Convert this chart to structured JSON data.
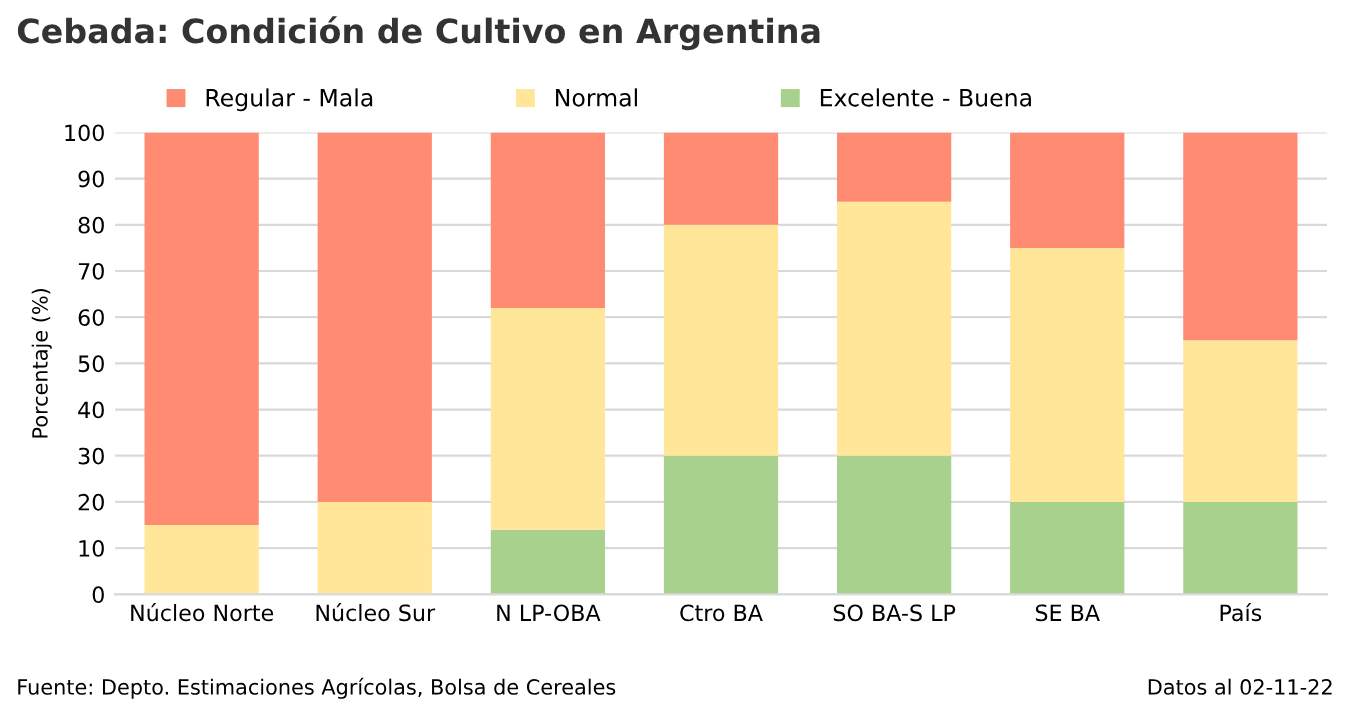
{
  "chart_data": {
    "type": "bar",
    "stacked": true,
    "title": "Cebada: Condición de Cultivo en Argentina",
    "ylabel": "Porcentaje (%)",
    "categories": [
      "Núcleo Norte",
      "Núcleo Sur",
      "N LP-OBA",
      "Ctro BA",
      "SO BA-S LP",
      "SE BA",
      "País"
    ],
    "series": [
      {
        "name": "Excelente - Buena",
        "color": "#a9d18e",
        "values": [
          0,
          0,
          14,
          30,
          30,
          20,
          20
        ]
      },
      {
        "name": "Normal",
        "color": "#ffe699",
        "values": [
          15,
          20,
          48,
          50,
          55,
          55,
          35
        ]
      },
      {
        "name": "Regular - Mala",
        "color": "#ff8c72",
        "values": [
          85,
          80,
          38,
          20,
          15,
          25,
          45
        ]
      }
    ],
    "ylim": [
      0,
      100
    ],
    "yticks": [
      0,
      10,
      20,
      30,
      40,
      50,
      60,
      70,
      80,
      90,
      100
    ],
    "grid": "y",
    "legend": "top",
    "annotations": [
      "Fuente: Depto. Estimaciones Agrícolas, Bolsa de Cereales",
      "Datos al 02-11-22"
    ]
  }
}
